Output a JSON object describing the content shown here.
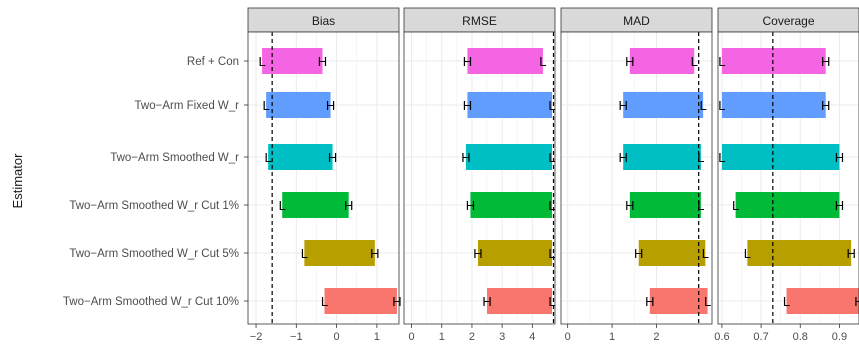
{
  "chart_data": {
    "type": "bar",
    "ylabel": "Estimator",
    "categories": [
      "Ref + Con",
      "Two−Arm Fixed W_r",
      "Two−Arm Smoothed W_r",
      "Two−Arm Smoothed W_r Cut 1%",
      "Two−Arm Smoothed W_r Cut 5%",
      "Two−Arm Smoothed W_r Cut 10%"
    ],
    "colors": [
      "#f564e3",
      "#619cff",
      "#00bfc4",
      "#00ba38",
      "#b79f00",
      "#f8766d"
    ],
    "facets": [
      {
        "title": "Bias",
        "xlim": [
          -2.2,
          1.55
        ],
        "ticks": [
          -2,
          -1,
          0,
          1
        ],
        "tick_labels": [
          "−2",
          "−1",
          "0",
          "1"
        ],
        "reference_line": -1.6,
        "bars": [
          {
            "low": -1.85,
            "high": -0.35,
            "left_mark": "L",
            "right_mark": "H"
          },
          {
            "low": -1.75,
            "high": -0.15,
            "left_mark": "L",
            "right_mark": "H"
          },
          {
            "low": -1.7,
            "high": -0.1,
            "left_mark": "L",
            "right_mark": "H"
          },
          {
            "low": -1.35,
            "high": 0.3,
            "left_mark": "L",
            "right_mark": "H"
          },
          {
            "low": -0.8,
            "high": 0.95,
            "left_mark": "L",
            "right_mark": "H"
          },
          {
            "low": -0.3,
            "high": 1.5,
            "left_mark": "L",
            "right_mark": "H"
          }
        ]
      },
      {
        "title": "RMSE",
        "xlim": [
          -0.25,
          4.75
        ],
        "ticks": [
          0,
          1,
          2,
          3,
          4
        ],
        "tick_labels": [
          "0",
          "1",
          "2",
          "3",
          "4"
        ],
        "reference_line": 4.7,
        "bars": [
          {
            "low": 1.85,
            "high": 4.35,
            "left_mark": "H",
            "right_mark": "L"
          },
          {
            "low": 1.85,
            "high": 4.65,
            "left_mark": "H",
            "right_mark": "L"
          },
          {
            "low": 1.8,
            "high": 4.65,
            "left_mark": "H",
            "right_mark": "L"
          },
          {
            "low": 1.95,
            "high": 4.65,
            "left_mark": "H",
            "right_mark": "L"
          },
          {
            "low": 2.2,
            "high": 4.65,
            "left_mark": "H",
            "right_mark": "L"
          },
          {
            "low": 2.5,
            "high": 4.65,
            "left_mark": "H",
            "right_mark": "L"
          }
        ]
      },
      {
        "title": "MAD",
        "xlim": [
          -0.15,
          3.25
        ],
        "ticks": [
          0,
          1,
          2
        ],
        "tick_labels": [
          "0",
          "1",
          "2"
        ],
        "reference_line": 2.95,
        "bars": [
          {
            "low": 1.4,
            "high": 2.85,
            "left_mark": "H",
            "right_mark": "L"
          },
          {
            "low": 1.25,
            "high": 3.05,
            "left_mark": "H",
            "right_mark": "L"
          },
          {
            "low": 1.25,
            "high": 3.0,
            "left_mark": "H",
            "right_mark": "L"
          },
          {
            "low": 1.4,
            "high": 3.0,
            "left_mark": "H",
            "right_mark": "L"
          },
          {
            "low": 1.6,
            "high": 3.1,
            "left_mark": "H",
            "right_mark": "L"
          },
          {
            "low": 1.85,
            "high": 3.15,
            "left_mark": "H",
            "right_mark": "L"
          }
        ]
      },
      {
        "title": "Coverage",
        "xlim": [
          0.59,
          0.95
        ],
        "ticks": [
          0.6,
          0.7,
          0.8,
          0.9
        ],
        "tick_labels": [
          "0.6",
          "0.7",
          "0.8",
          "0.9"
        ],
        "reference_line": 0.73,
        "bars": [
          {
            "low": 0.6,
            "high": 0.865,
            "left_mark": "L",
            "right_mark": "H"
          },
          {
            "low": 0.6,
            "high": 0.865,
            "left_mark": "L",
            "right_mark": "H"
          },
          {
            "low": 0.6,
            "high": 0.9,
            "left_mark": "L",
            "right_mark": "H"
          },
          {
            "low": 0.635,
            "high": 0.9,
            "left_mark": "L",
            "right_mark": "H"
          },
          {
            "low": 0.665,
            "high": 0.93,
            "left_mark": "L",
            "right_mark": "H"
          },
          {
            "low": 0.765,
            "high": 0.95,
            "left_mark": "L",
            "right_mark": "H"
          }
        ]
      }
    ]
  }
}
